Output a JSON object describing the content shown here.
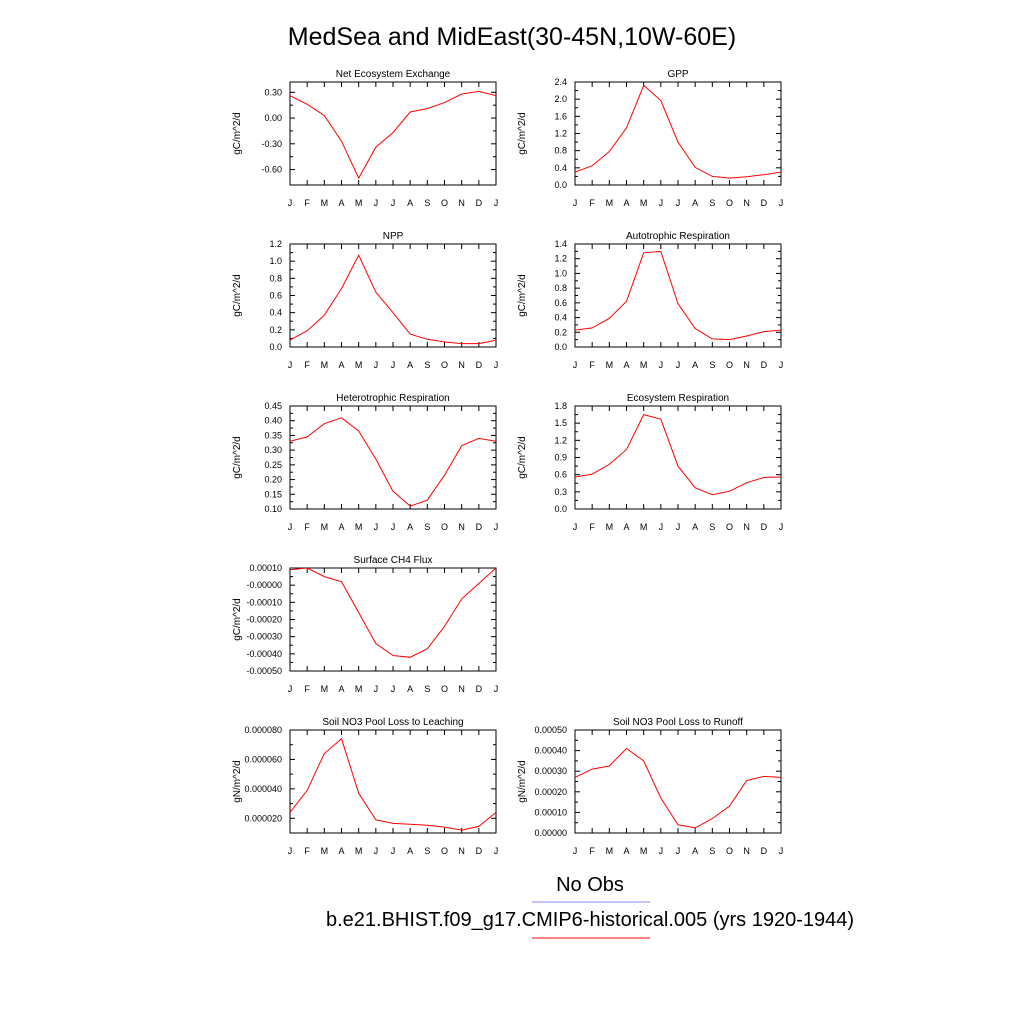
{
  "title": "MedSea and MidEast(30-45N,10W-60E)",
  "month_labels": [
    "J",
    "F",
    "M",
    "A",
    "M",
    "J",
    "J",
    "A",
    "S",
    "O",
    "N",
    "D",
    "J"
  ],
  "chart_data": [
    {
      "type": "line",
      "title": "Net Ecosystem Exchange",
      "ylabel": "gC/m^2/d",
      "ylim": [
        -0.78,
        0.42
      ],
      "yticks": [
        -0.6,
        -0.3,
        0.0,
        0.3
      ],
      "ytick_labels": [
        "-0.60",
        "-0.30",
        "0.00",
        "0.30"
      ],
      "x": [
        "J",
        "F",
        "M",
        "A",
        "M",
        "J",
        "J",
        "A",
        "S",
        "O",
        "N",
        "D",
        "J"
      ],
      "values": [
        0.26,
        0.16,
        0.03,
        -0.27,
        -0.7,
        -0.34,
        -0.17,
        0.07,
        0.11,
        0.18,
        0.28,
        0.31,
        0.26
      ],
      "series_color": "#ff0000"
    },
    {
      "type": "line",
      "title": "GPP",
      "ylabel": "gC/m^2/d",
      "ylim": [
        0.0,
        2.4
      ],
      "yticks": [
        0.0,
        0.4,
        0.8,
        1.2,
        1.6,
        2.0,
        2.4
      ],
      "ytick_labels": [
        "0.0",
        "0.4",
        "0.8",
        "1.2",
        "1.6",
        "2.0",
        "2.4"
      ],
      "x": [
        "J",
        "F",
        "M",
        "A",
        "M",
        "J",
        "J",
        "A",
        "S",
        "O",
        "N",
        "D",
        "J"
      ],
      "values": [
        0.3,
        0.45,
        0.78,
        1.33,
        2.32,
        1.97,
        1.0,
        0.41,
        0.2,
        0.16,
        0.19,
        0.24,
        0.3
      ],
      "series_color": "#ff0000"
    },
    {
      "type": "line",
      "title": "NPP",
      "ylabel": "gC/m^2/d",
      "ylim": [
        0.0,
        1.2
      ],
      "yticks": [
        0.0,
        0.2,
        0.4,
        0.6,
        0.8,
        1.0,
        1.2
      ],
      "ytick_labels": [
        "0.0",
        "0.2",
        "0.4",
        "0.6",
        "0.8",
        "1.0",
        "1.2"
      ],
      "x": [
        "J",
        "F",
        "M",
        "A",
        "M",
        "J",
        "J",
        "A",
        "S",
        "O",
        "N",
        "D",
        "J"
      ],
      "values": [
        0.08,
        0.19,
        0.37,
        0.68,
        1.07,
        0.64,
        0.4,
        0.15,
        0.09,
        0.06,
        0.04,
        0.04,
        0.08
      ],
      "series_color": "#ff0000"
    },
    {
      "type": "line",
      "title": "Autotrophic Respiration",
      "ylabel": "gC/m^2/d",
      "ylim": [
        0.0,
        1.4
      ],
      "yticks": [
        0.0,
        0.2,
        0.4,
        0.6,
        0.8,
        1.0,
        1.2,
        1.4
      ],
      "ytick_labels": [
        "0.0",
        "0.2",
        "0.4",
        "0.6",
        "0.8",
        "1.0",
        "1.2",
        "1.4"
      ],
      "x": [
        "J",
        "F",
        "M",
        "A",
        "M",
        "J",
        "J",
        "A",
        "S",
        "O",
        "N",
        "D",
        "J"
      ],
      "values": [
        0.23,
        0.26,
        0.39,
        0.62,
        1.28,
        1.3,
        0.59,
        0.25,
        0.11,
        0.1,
        0.15,
        0.21,
        0.23
      ],
      "series_color": "#ff0000"
    },
    {
      "type": "line",
      "title": "Heterotrophic Respiration",
      "ylabel": "gC/m^2/d",
      "ylim": [
        0.1,
        0.45
      ],
      "yticks": [
        0.1,
        0.15,
        0.2,
        0.25,
        0.3,
        0.35,
        0.4,
        0.45
      ],
      "ytick_labels": [
        "0.10",
        "0.15",
        "0.20",
        "0.25",
        "0.30",
        "0.35",
        "0.40",
        "0.45"
      ],
      "x": [
        "J",
        "F",
        "M",
        "A",
        "M",
        "J",
        "J",
        "A",
        "S",
        "O",
        "N",
        "D",
        "J"
      ],
      "values": [
        0.33,
        0.345,
        0.39,
        0.41,
        0.365,
        0.27,
        0.16,
        0.11,
        0.13,
        0.215,
        0.315,
        0.34,
        0.33
      ],
      "series_color": "#ff0000"
    },
    {
      "type": "line",
      "title": "Ecosystem Respiration",
      "ylabel": "gC/m^2/d",
      "ylim": [
        0.0,
        1.8
      ],
      "yticks": [
        0.0,
        0.3,
        0.6,
        0.9,
        1.2,
        1.5,
        1.8
      ],
      "ytick_labels": [
        "0.0",
        "0.3",
        "0.6",
        "0.9",
        "1.2",
        "1.5",
        "1.8"
      ],
      "x": [
        "J",
        "F",
        "M",
        "A",
        "M",
        "J",
        "J",
        "A",
        "S",
        "O",
        "N",
        "D",
        "J"
      ],
      "values": [
        0.56,
        0.61,
        0.78,
        1.04,
        1.65,
        1.57,
        0.75,
        0.37,
        0.25,
        0.31,
        0.46,
        0.55,
        0.56
      ],
      "series_color": "#ff0000"
    },
    {
      "type": "line",
      "title": "Surface CH4 Flux",
      "ylabel": "gC/m^2/d",
      "ylim": [
        -0.0005,
        0.0001
      ],
      "yticks": [
        -0.0005,
        -0.0004,
        -0.0003,
        -0.0002,
        -0.0001,
        0.0,
        0.0001
      ],
      "ytick_labels": [
        "-0.00050",
        "-0.00040",
        "-0.00030",
        "-0.00020",
        "-0.00010",
        "-0.00000",
        "0.00010"
      ],
      "x": [
        "J",
        "F",
        "M",
        "A",
        "M",
        "J",
        "J",
        "A",
        "S",
        "O",
        "N",
        "D",
        "J"
      ],
      "values": [
        9e-05,
        0.0001,
        5e-05,
        2e-05,
        -0.00016,
        -0.00034,
        -0.00041,
        -0.00042,
        -0.00037,
        -0.00024,
        -8e-05,
        1e-05,
        0.0001
      ],
      "series_color": "#ff0000"
    },
    {
      "type": "line",
      "title": "Soil NO3 Pool Loss to Leaching",
      "ylabel": "gN/m^2/d",
      "ylim": [
        1e-05,
        8e-05
      ],
      "yticks": [
        2e-05,
        4e-05,
        6e-05,
        8e-05
      ],
      "ytick_labels": [
        "0.000020",
        "0.000040",
        "0.000060",
        "0.000080"
      ],
      "x": [
        "J",
        "F",
        "M",
        "A",
        "M",
        "J",
        "J",
        "A",
        "S",
        "O",
        "N",
        "D",
        "J"
      ],
      "values": [
        2.4e-05,
        3.9e-05,
        6.4e-05,
        7.4e-05,
        3.7e-05,
        1.9e-05,
        1.65e-05,
        1.6e-05,
        1.53e-05,
        1.4e-05,
        1.2e-05,
        1.45e-05,
        2.4e-05
      ],
      "series_color": "#ff0000"
    },
    {
      "type": "line",
      "title": "Soil NO3 Pool Loss to Runoff",
      "ylabel": "gN/m^2/d",
      "ylim": [
        0.0,
        0.0005
      ],
      "yticks": [
        0.0,
        0.0001,
        0.0002,
        0.0003,
        0.0004,
        0.0005
      ],
      "ytick_labels": [
        "0.00000",
        "0.00010",
        "0.00020",
        "0.00030",
        "0.00040",
        "0.00050"
      ],
      "x": [
        "J",
        "F",
        "M",
        "A",
        "M",
        "J",
        "J",
        "A",
        "S",
        "O",
        "N",
        "D",
        "J"
      ],
      "values": [
        0.00027,
        0.00031,
        0.000325,
        0.00041,
        0.00035,
        0.00017,
        4e-05,
        2.5e-05,
        7e-05,
        0.00013,
        0.000255,
        0.000275,
        0.00027
      ],
      "series_color": "#ff0000"
    }
  ],
  "legend": {
    "entries": [
      {
        "label": "No Obs",
        "color": "#8888ff"
      },
      {
        "label": "b.e21.BHIST.f09_g17.CMIP6-historical.005 (yrs 1920-1944)",
        "color": "#ff0000"
      }
    ]
  }
}
